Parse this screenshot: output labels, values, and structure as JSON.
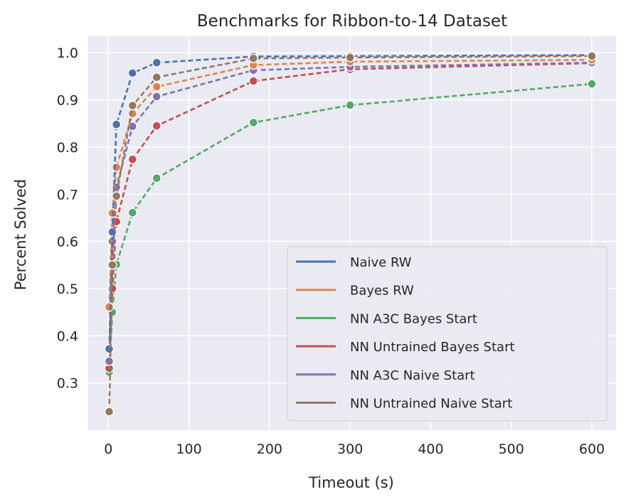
{
  "chart_data": {
    "type": "line",
    "title": "Benchmarks for Ribbon-to-14 Dataset",
    "xlabel": "Timeout (s)",
    "ylabel": "Percent Solved",
    "xlim": [
      -25,
      630
    ],
    "ylim": [
      0.2,
      1.035
    ],
    "xticks": [
      0,
      100,
      200,
      300,
      400,
      500,
      600
    ],
    "xtick_labels": [
      "0",
      "100",
      "200",
      "300",
      "400",
      "500",
      "600"
    ],
    "yticks": [
      0.3,
      0.4,
      0.5,
      0.6,
      0.7,
      0.8,
      0.9,
      1.0
    ],
    "ytick_labels": [
      "0.3",
      "0.4",
      "0.5",
      "0.6",
      "0.7",
      "0.8",
      "0.9",
      "1.0"
    ],
    "grid": true,
    "legend_position": "lower-right",
    "x": [
      1,
      5,
      10,
      30,
      60,
      180,
      300,
      600
    ],
    "series": [
      {
        "name": "Naive RW",
        "color": "#4c72b0",
        "values": [
          0.372,
          0.62,
          0.848,
          0.957,
          0.979,
          0.992,
          0.993,
          0.995
        ]
      },
      {
        "name": "Bayes RW",
        "color": "#dd8452",
        "values": [
          0.461,
          0.66,
          0.757,
          0.871,
          0.928,
          0.974,
          0.981,
          0.985
        ]
      },
      {
        "name": "NN A3C Bayes Start",
        "color": "#55a868",
        "values": [
          0.323,
          0.45,
          0.551,
          0.661,
          0.734,
          0.852,
          0.889,
          0.934
        ]
      },
      {
        "name": "NN Untrained Bayes Start",
        "color": "#c44e52",
        "values": [
          0.331,
          0.5,
          0.642,
          0.774,
          0.845,
          0.94,
          0.965,
          0.978
        ]
      },
      {
        "name": "NN A3C Naive Start",
        "color": "#8172b3",
        "values": [
          0.346,
          0.6,
          0.715,
          0.844,
          0.907,
          0.963,
          0.97,
          0.979
        ]
      },
      {
        "name": "NN Untrained Naive Start",
        "color": "#937860",
        "values": [
          0.239,
          0.55,
          0.696,
          0.888,
          0.948,
          0.988,
          0.99,
          0.993
        ]
      }
    ],
    "draw_order": [
      2,
      3,
      4,
      1,
      0,
      5
    ]
  }
}
